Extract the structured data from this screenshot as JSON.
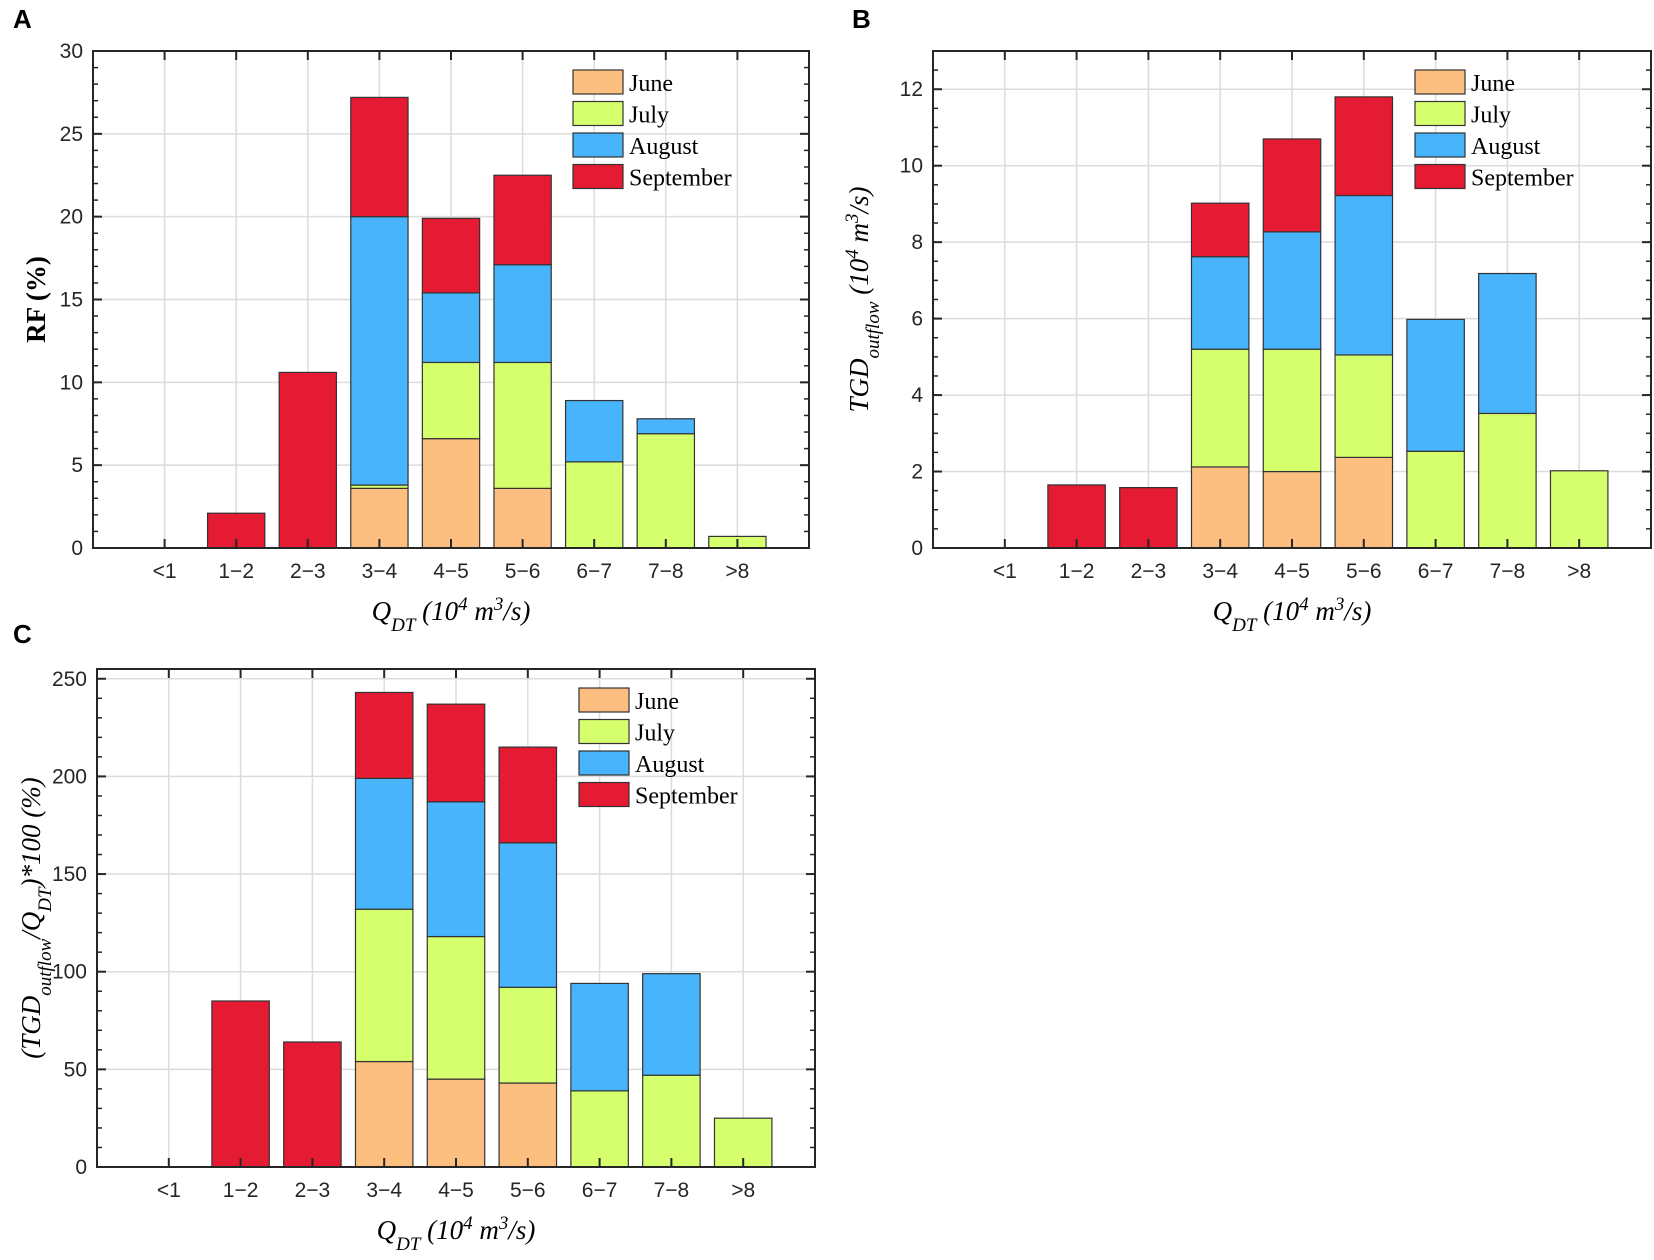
{
  "colors": {
    "June": "#FDBF7F",
    "July": "#D6FF6D",
    "August": "#47B4FC",
    "September": "#E51A33",
    "grid": "#DCDCDC",
    "axis": "#262626"
  },
  "chart_data": [
    {
      "panel": "A",
      "type": "bar",
      "stacked": true,
      "categories": [
        "<1",
        "1−2",
        "2−3",
        "3−4",
        "4−5",
        "5−6",
        "6−7",
        "7−8",
        ">8"
      ],
      "series": [
        {
          "name": "June",
          "values": [
            0,
            0,
            0,
            3.6,
            6.6,
            3.6,
            0,
            0,
            0
          ]
        },
        {
          "name": "July",
          "values": [
            0,
            0,
            0,
            0.2,
            4.6,
            7.6,
            5.2,
            6.9,
            0.7
          ]
        },
        {
          "name": "August",
          "values": [
            0,
            0,
            0,
            16.2,
            4.2,
            5.9,
            3.7,
            0.9,
            0
          ]
        },
        {
          "name": "September",
          "values": [
            0,
            2.1,
            10.6,
            7.2,
            4.5,
            5.4,
            0,
            0,
            0
          ]
        }
      ],
      "yticks": [
        "0",
        "5",
        "10",
        "15",
        "20",
        "25",
        "30"
      ],
      "ytick_values": [
        0,
        5,
        10,
        15,
        20,
        25,
        30
      ],
      "ylim": [
        0,
        30
      ],
      "minor_step": 1,
      "ylabel_parts": [
        {
          "t": "RF (%)",
          "s": "n"
        }
      ],
      "ylabel_style": "plain",
      "xlabel_parts": [
        {
          "t": "Q",
          "s": "n"
        },
        {
          "t": "DT",
          "s": "sub"
        },
        {
          "t": " (10",
          "s": "n"
        },
        {
          "t": "4",
          "s": "sup"
        },
        {
          "t": " m",
          "s": "n"
        },
        {
          "t": "3",
          "s": "sup"
        },
        {
          "t": "/s)",
          "s": "n"
        }
      ],
      "grid": true,
      "legend": "top-right"
    },
    {
      "panel": "B",
      "type": "bar",
      "stacked": true,
      "categories": [
        "<1",
        "1−2",
        "2−3",
        "3−4",
        "4−5",
        "5−6",
        "6−7",
        "7−8",
        ">8"
      ],
      "series": [
        {
          "name": "June",
          "values": [
            0,
            0,
            0,
            2.12,
            2.0,
            2.37,
            0,
            0,
            0
          ]
        },
        {
          "name": "July",
          "values": [
            0,
            0,
            0,
            3.08,
            3.2,
            2.68,
            2.53,
            3.52,
            2.02
          ]
        },
        {
          "name": "August",
          "values": [
            0,
            0,
            0,
            2.42,
            3.07,
            4.17,
            3.45,
            3.66,
            0
          ]
        },
        {
          "name": "September",
          "values": [
            0,
            1.65,
            1.58,
            1.4,
            2.43,
            2.58,
            0,
            0,
            0
          ]
        }
      ],
      "yticks": [
        "0",
        "2",
        "4",
        "6",
        "8",
        "10",
        "12"
      ],
      "ytick_values": [
        0,
        2,
        4,
        6,
        8,
        10,
        12
      ],
      "ylim": [
        0,
        13
      ],
      "minor_step": 0.5,
      "ylabel_parts": [
        {
          "t": "TGD",
          "s": "n"
        },
        {
          "t": "outflow",
          "s": "sub"
        },
        {
          "t": " (10",
          "s": "n"
        },
        {
          "t": "4",
          "s": "sup"
        },
        {
          "t": " m",
          "s": "n"
        },
        {
          "t": "3",
          "s": "sup"
        },
        {
          "t": "/s)",
          "s": "n"
        }
      ],
      "ylabel_style": "italic",
      "xlabel_parts": [
        {
          "t": "Q",
          "s": "n"
        },
        {
          "t": "DT",
          "s": "sub"
        },
        {
          "t": " (10",
          "s": "n"
        },
        {
          "t": "4",
          "s": "sup"
        },
        {
          "t": " m",
          "s": "n"
        },
        {
          "t": "3",
          "s": "sup"
        },
        {
          "t": "/s)",
          "s": "n"
        }
      ],
      "grid": true,
      "legend": "top-right"
    },
    {
      "panel": "C",
      "type": "bar",
      "stacked": true,
      "categories": [
        "<1",
        "1−2",
        "2−3",
        "3−4",
        "4−5",
        "5−6",
        "6−7",
        "7−8",
        ">8"
      ],
      "series": [
        {
          "name": "June",
          "values": [
            0,
            0,
            0,
            54,
            45,
            43,
            0,
            0,
            0
          ]
        },
        {
          "name": "July",
          "values": [
            0,
            0,
            0,
            78,
            73,
            49,
            39,
            47,
            25
          ]
        },
        {
          "name": "August",
          "values": [
            0,
            0,
            0,
            67,
            69,
            74,
            55,
            52,
            0
          ]
        },
        {
          "name": "September",
          "values": [
            0,
            85,
            64,
            44,
            50,
            49,
            0,
            0,
            0
          ]
        }
      ],
      "yticks": [
        "0",
        "50",
        "100",
        "150",
        "200",
        "250"
      ],
      "ytick_values": [
        0,
        50,
        100,
        150,
        200,
        250
      ],
      "ylim": [
        0,
        255
      ],
      "minor_step": 10,
      "ylabel_parts": [
        {
          "t": "(TGD",
          "s": "n"
        },
        {
          "t": "outflow",
          "s": "sub"
        },
        {
          "t": "/Q",
          "s": "n"
        },
        {
          "t": "DT",
          "s": "sub"
        },
        {
          "t": ")*100 (%)",
          "s": "n"
        }
      ],
      "ylabel_style": "italic",
      "xlabel_parts": [
        {
          "t": "Q",
          "s": "n"
        },
        {
          "t": "DT",
          "s": "sub"
        },
        {
          "t": " (10",
          "s": "n"
        },
        {
          "t": "4",
          "s": "sup"
        },
        {
          "t": " m",
          "s": "n"
        },
        {
          "t": "3",
          "s": "sup"
        },
        {
          "t": "/s)",
          "s": "n"
        }
      ],
      "grid": true,
      "legend": "top-right"
    }
  ]
}
